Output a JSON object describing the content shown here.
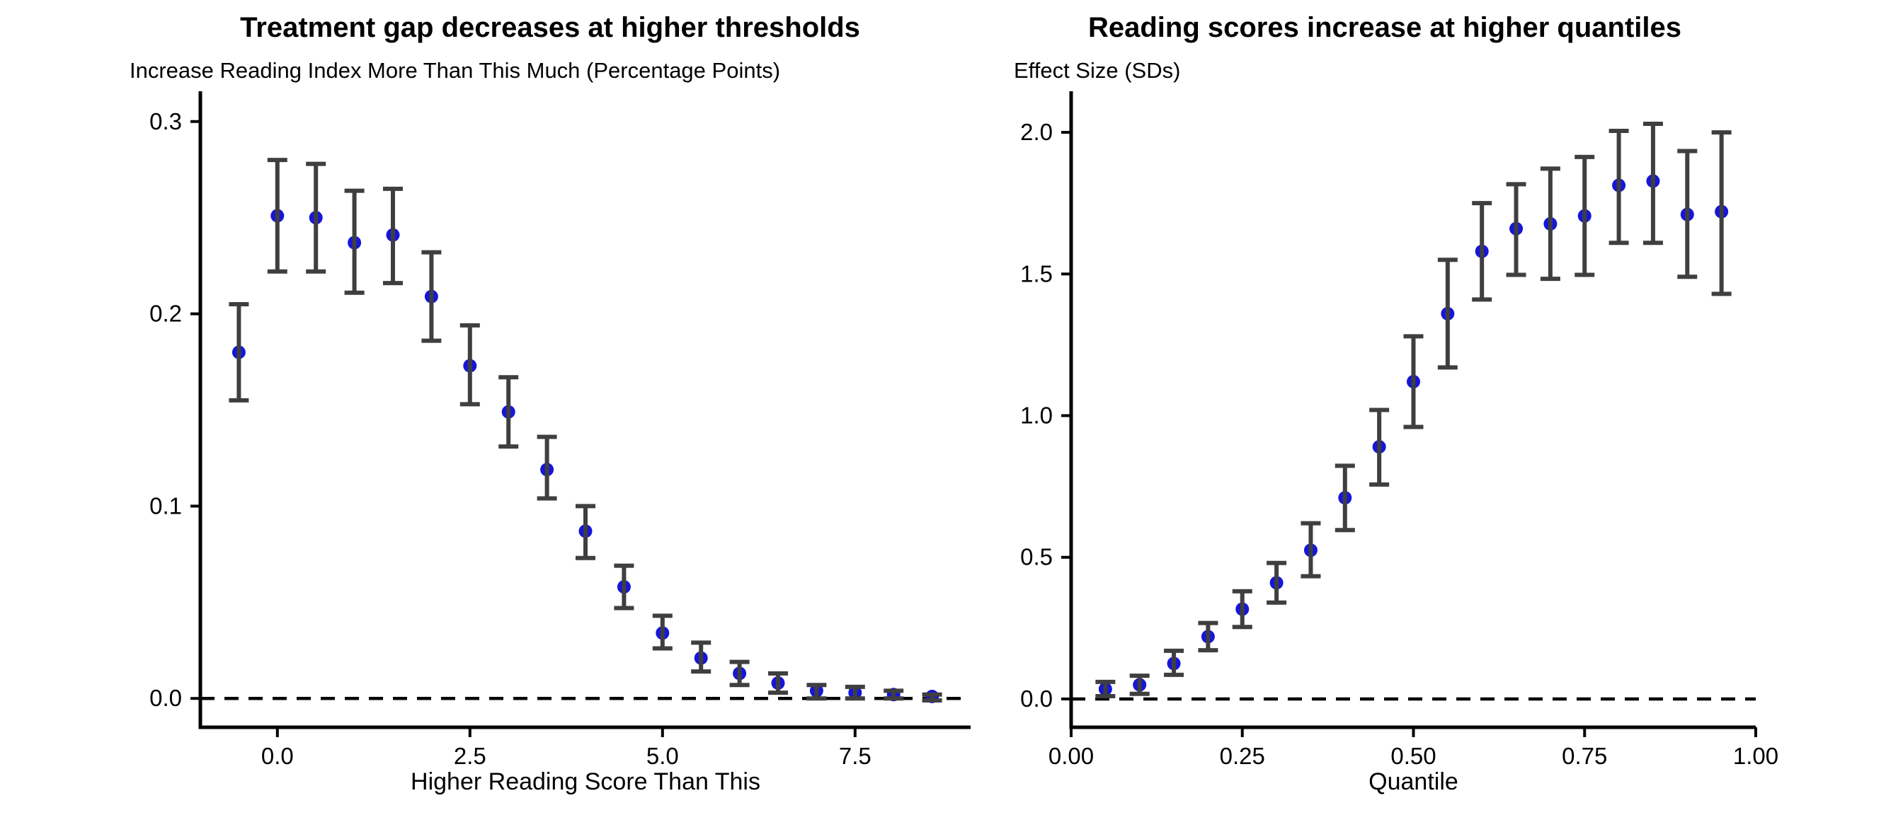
{
  "figure": {
    "background_color": "#ffffff",
    "text_color": "#000000",
    "marker_color": "#1616d9",
    "errorbar_color": "#3f3f3f",
    "axis_color": "#000000",
    "reference_line_color": "#000000"
  },
  "chart_data": [
    {
      "type": "scatter",
      "panel": "left",
      "title": "Treatment gap decreases at higher thresholds",
      "subtitle": "Increase Reading Index More Than This Much (Percentage Points)",
      "xlabel": "Higher Reading Score Than This",
      "ylabel": "",
      "xlim": [
        -1.0,
        9.0
      ],
      "ylim": [
        -0.015,
        0.315
      ],
      "xticks": {
        "values": [
          0.0,
          2.5,
          5.0,
          7.5
        ],
        "labels": [
          "0.0",
          "2.5",
          "5.0",
          "7.5"
        ]
      },
      "yticks": {
        "values": [
          0.0,
          0.1,
          0.2,
          0.3
        ],
        "labels": [
          "0.0",
          "0.1",
          "0.2",
          "0.3"
        ]
      },
      "grid": false,
      "legend": "none",
      "reference_line_y": 0,
      "series": [
        {
          "name": "treatment-gap-estimates",
          "x": [
            -0.5,
            0.0,
            0.5,
            1.0,
            1.5,
            2.0,
            2.5,
            3.0,
            3.5,
            4.0,
            4.5,
            5.0,
            5.5,
            6.0,
            6.5,
            7.0,
            7.5,
            8.0,
            8.5
          ],
          "y": [
            0.18,
            0.251,
            0.25,
            0.237,
            0.241,
            0.209,
            0.173,
            0.149,
            0.119,
            0.087,
            0.058,
            0.034,
            0.021,
            0.013,
            0.008,
            0.004,
            0.003,
            0.002,
            0.001
          ],
          "ci_low": [
            0.155,
            0.222,
            0.222,
            0.211,
            0.216,
            0.186,
            0.153,
            0.131,
            0.104,
            0.073,
            0.047,
            0.026,
            0.014,
            0.007,
            0.003,
            0.0,
            0.0,
            0.0,
            -0.001
          ],
          "ci_high": [
            0.205,
            0.28,
            0.278,
            0.264,
            0.265,
            0.232,
            0.194,
            0.167,
            0.136,
            0.1,
            0.069,
            0.043,
            0.029,
            0.019,
            0.013,
            0.007,
            0.006,
            0.004,
            0.002
          ]
        }
      ]
    },
    {
      "type": "scatter",
      "panel": "right",
      "title": "Reading scores increase at higher quantiles",
      "subtitle": "Effect Size (SDs)",
      "xlabel": "Quantile",
      "ylabel": "",
      "xlim": [
        0.0,
        1.0
      ],
      "ylim": [
        -0.1,
        2.14
      ],
      "xticks": {
        "values": [
          0.0,
          0.25,
          0.5,
          0.75,
          1.0
        ],
        "labels": [
          "0.00",
          "0.25",
          "0.50",
          "0.75",
          "1.00"
        ]
      },
      "yticks": {
        "values": [
          0.0,
          0.5,
          1.0,
          1.5,
          2.0
        ],
        "labels": [
          "0.0",
          "0.5",
          "1.0",
          "1.5",
          "2.0"
        ]
      },
      "grid": false,
      "legend": "none",
      "reference_line_y": 0,
      "series": [
        {
          "name": "quantile-effect-sizes",
          "x": [
            0.05,
            0.1,
            0.15,
            0.2,
            0.25,
            0.3,
            0.35,
            0.4,
            0.45,
            0.5,
            0.55,
            0.6,
            0.65,
            0.7,
            0.75,
            0.8,
            0.85,
            0.9,
            0.95
          ],
          "y": [
            0.035,
            0.05,
            0.125,
            0.22,
            0.317,
            0.41,
            0.525,
            0.71,
            0.89,
            1.12,
            1.36,
            1.58,
            1.66,
            1.677,
            1.705,
            1.813,
            1.828,
            1.71,
            1.72
          ],
          "ci_low": [
            0.01,
            0.018,
            0.085,
            0.172,
            0.254,
            0.34,
            0.433,
            0.596,
            0.757,
            0.96,
            1.17,
            1.41,
            1.497,
            1.483,
            1.497,
            1.61,
            1.61,
            1.49,
            1.43
          ],
          "ci_high": [
            0.06,
            0.082,
            0.17,
            0.268,
            0.38,
            0.48,
            0.62,
            0.823,
            1.02,
            1.28,
            1.55,
            1.75,
            1.817,
            1.872,
            1.913,
            2.005,
            2.03,
            1.934,
            2.0
          ]
        }
      ]
    }
  ]
}
